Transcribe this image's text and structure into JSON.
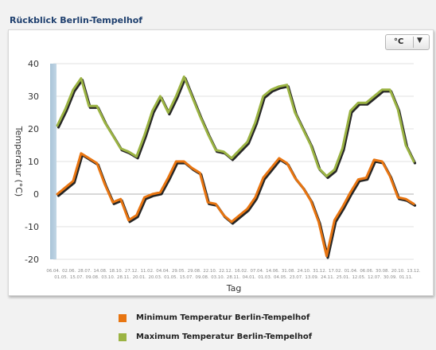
{
  "header": {
    "title": "Rückblick Berlin-Tempelhof"
  },
  "unit_selector": {
    "value": "°C",
    "arrow_icon": "triangle-down-icon"
  },
  "legend": {
    "items": [
      {
        "label": "Minimum Temperatur Berlin-Tempelhof",
        "color": "#e87511"
      },
      {
        "label": "Maximum Temperatur Berlin-Tempelhof",
        "color": "#9bb343"
      }
    ]
  },
  "chart_data": {
    "type": "line",
    "title": "",
    "xlabel": "Tag",
    "ylabel": "Temperatur (°C)",
    "ylim": [
      -20,
      40
    ],
    "yticks": [
      -20,
      -10,
      0,
      10,
      20,
      30,
      40
    ],
    "grid": true,
    "legend_position": "bottom",
    "x_labels_top": [
      "06.04.",
      "02.06.",
      "28.07.",
      "14.08.",
      "18.10.",
      "27.12.",
      "11.02.",
      "04.04.",
      "29.05.",
      "29.08.",
      "22.10.",
      "22.12.",
      "16.02.",
      "07.04.",
      "14.06.",
      "31.08.",
      "24.10.",
      "31.12.",
      "17.02.",
      "01.04.",
      "06.06.",
      "30.08.",
      "20.10.",
      "13.12."
    ],
    "x_labels_bottom": [
      "01.05.",
      "15.07.",
      "09.08.",
      "03.10.",
      "28.11.",
      "20.01.",
      "20.03.",
      "01.05.",
      "15.07.",
      "09.08.",
      "03.10.",
      "28.11.",
      "04.01.",
      "01.03.",
      "04.05.",
      "23.07.",
      "13.09.",
      "24.11.",
      "25.01.",
      "12.05.",
      "12.07.",
      "30.09.",
      "01.11."
    ],
    "series": [
      {
        "name": "Minimum Temperatur Berlin-Tempelhof",
        "color": "#e87511",
        "values": [
          0,
          2,
          4,
          12.5,
          11,
          9.5,
          3,
          -2.5,
          -1.5,
          -8,
          -6.5,
          -1,
          0,
          0.5,
          5,
          10,
          10,
          8,
          6.5,
          -2.5,
          -3,
          -6.5,
          -8.5,
          -6.5,
          -4.5,
          -1,
          5,
          8,
          11,
          9.5,
          5,
          2,
          -2,
          -8.5,
          -19,
          -8,
          -4,
          0.5,
          4.5,
          5,
          10.5,
          10,
          5.5,
          -1,
          -1.5,
          -3
        ]
      },
      {
        "name": "Maximum Temperatur Berlin-Tempelhof",
        "color": "#9bb343",
        "values": [
          21,
          26,
          32,
          35.5,
          27,
          27,
          22,
          18,
          14,
          13,
          11.5,
          18,
          25.5,
          30,
          25,
          30,
          36,
          30,
          24,
          18.5,
          13.5,
          13,
          11,
          13.5,
          16,
          22,
          30,
          32,
          33,
          33.5,
          25,
          20,
          15,
          8,
          5.5,
          7.5,
          14,
          25.5,
          28,
          28,
          30,
          32,
          32,
          26,
          15,
          10
        ]
      }
    ]
  }
}
